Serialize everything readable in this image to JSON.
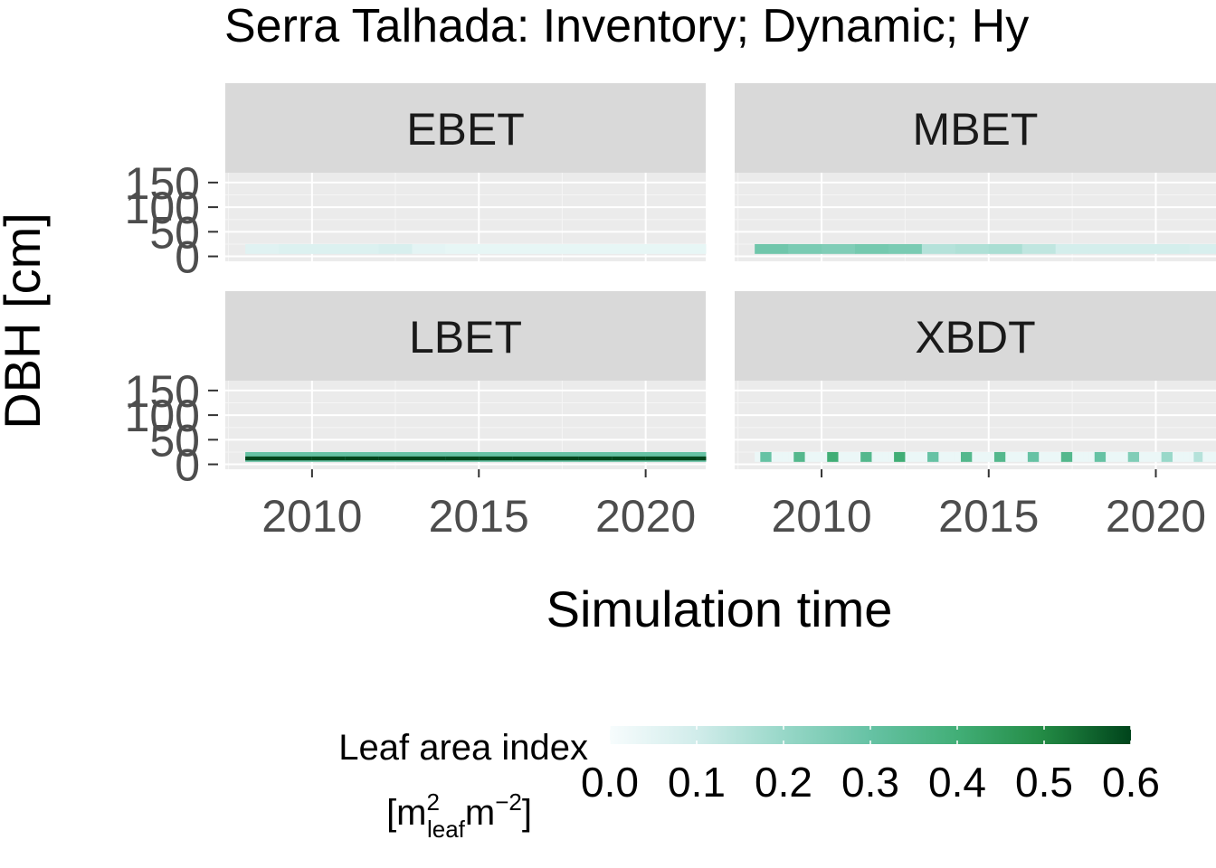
{
  "chart_data": {
    "type": "heatmap",
    "title": "Serra Talhada: Inventory; Dynamic; Hy",
    "xlabel": "Simulation time",
    "ylabel": "DBH [cm]",
    "x_ticks": [
      2010,
      2015,
      2020
    ],
    "y_ticks": [
      0,
      50,
      100,
      150
    ],
    "xlim": [
      2007.4,
      2021.8
    ],
    "ylim": [
      -10,
      170
    ],
    "facets": [
      {
        "name": "EBET",
        "dbh_class": 15,
        "years": [
          2008,
          2009,
          2010,
          2011,
          2012,
          2013,
          2014,
          2015,
          2016,
          2017,
          2018,
          2019,
          2020,
          2021
        ],
        "lai": [
          0.06,
          0.07,
          0.07,
          0.07,
          0.08,
          0.05,
          0.04,
          0.04,
          0.04,
          0.04,
          0.04,
          0.04,
          0.04,
          0.04
        ]
      },
      {
        "name": "MBET",
        "dbh_class": 15,
        "years": [
          2008,
          2009,
          2010,
          2011,
          2012,
          2013,
          2014,
          2015,
          2016,
          2017,
          2018,
          2019,
          2020,
          2021
        ],
        "lai": [
          0.28,
          0.26,
          0.25,
          0.27,
          0.26,
          0.15,
          0.16,
          0.17,
          0.13,
          0.09,
          0.09,
          0.09,
          0.09,
          0.08
        ]
      },
      {
        "name": "LBET",
        "dbh_class": 15,
        "years": [
          2008,
          2009,
          2010,
          2011,
          2012,
          2013,
          2014,
          2015,
          2016,
          2017,
          2018,
          2019,
          2020,
          2021
        ],
        "lai": [
          0.6,
          0.6,
          0.6,
          0.6,
          0.6,
          0.6,
          0.6,
          0.6,
          0.6,
          0.6,
          0.6,
          0.6,
          0.6,
          0.6
        ],
        "lai_outer": 0.3
      },
      {
        "name": "XBDT",
        "dbh_class": 15,
        "years": [
          2008,
          2009,
          2010,
          2011,
          2012,
          2013,
          2014,
          2015,
          2016,
          2017,
          2018,
          2019,
          2020,
          2021
        ],
        "lai_pattern_note": "seasonal pulses",
        "lai": [
          0.3,
          0.35,
          0.4,
          0.35,
          0.4,
          0.3,
          0.35,
          0.35,
          0.3,
          0.35,
          0.3,
          0.25,
          0.2,
          0.15
        ]
      }
    ],
    "legend": {
      "title_line1": "Leaf area index",
      "title_line2_prefix": "[m",
      "title_line2_sup1": "2",
      "title_line2_sub": "leaf",
      "title_line2_mid": "m",
      "title_line2_sup2": "−2",
      "title_line2_suffix": "]",
      "ticks": [
        "0.0",
        "0.1",
        "0.2",
        "0.3",
        "0.4",
        "0.5",
        "0.6"
      ],
      "min": 0.0,
      "max": 0.6,
      "placement": "bottom"
    },
    "colors": {
      "low": "#f7fcfd",
      "mid": "#66c2a4",
      "high": "#00441b",
      "panel_bg": "#ebebeb",
      "strip_bg": "#d9d9d9",
      "grid": "#ffffff"
    }
  }
}
